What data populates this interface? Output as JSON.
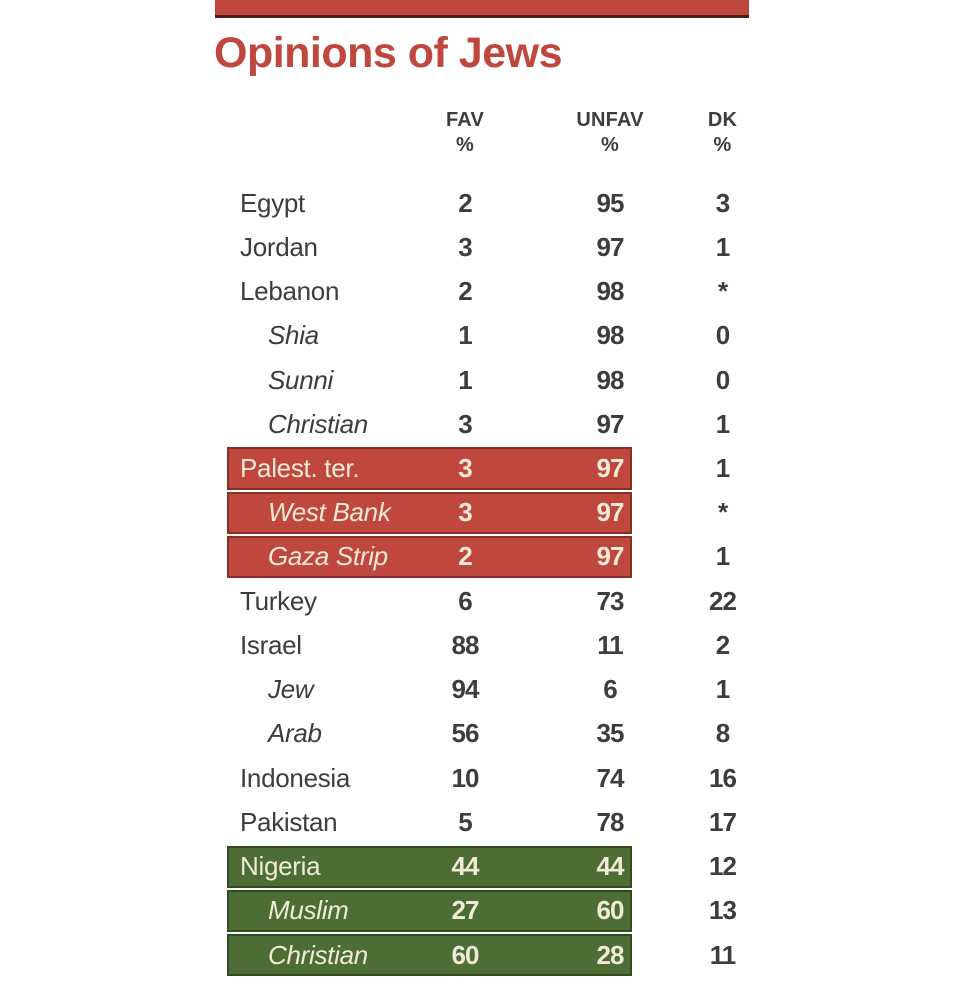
{
  "title": "Opinions of Jews",
  "colors": {
    "red": "#c0473e",
    "red_border": "#8a2f28",
    "green": "#4c6e35",
    "green_border": "#314a20",
    "text": "#3d3d3d",
    "cream": "#f2ead8",
    "background": "#ffffff"
  },
  "chart_data": {
    "type": "table",
    "title": "Opinions of Jews",
    "columns": [
      {
        "label": "FAV",
        "unit": "%"
      },
      {
        "label": "UNFAV",
        "unit": "%"
      },
      {
        "label": "DK",
        "unit": "%"
      }
    ],
    "highlight_legend": {
      "red": "rows highlighted red (Palestinian territories group)",
      "green": "rows highlighted green (Nigeria group)"
    },
    "rows": [
      {
        "label": "Egypt",
        "fav": "2",
        "unfav": "95",
        "dk": "3",
        "indent": false,
        "highlight": "none"
      },
      {
        "label": "Jordan",
        "fav": "3",
        "unfav": "97",
        "dk": "1",
        "indent": false,
        "highlight": "none"
      },
      {
        "label": "Lebanon",
        "fav": "2",
        "unfav": "98",
        "dk": "*",
        "indent": false,
        "highlight": "none"
      },
      {
        "label": "Shia",
        "fav": "1",
        "unfav": "98",
        "dk": "0",
        "indent": true,
        "highlight": "none"
      },
      {
        "label": "Sunni",
        "fav": "1",
        "unfav": "98",
        "dk": "0",
        "indent": true,
        "highlight": "none"
      },
      {
        "label": "Christian",
        "fav": "3",
        "unfav": "97",
        "dk": "1",
        "indent": true,
        "highlight": "none"
      },
      {
        "label": "Palest. ter.",
        "fav": "3",
        "unfav": "97",
        "dk": "1",
        "indent": false,
        "highlight": "red"
      },
      {
        "label": "West Bank",
        "fav": "3",
        "unfav": "97",
        "dk": "*",
        "indent": true,
        "highlight": "red"
      },
      {
        "label": "Gaza Strip",
        "fav": "2",
        "unfav": "97",
        "dk": "1",
        "indent": true,
        "highlight": "red"
      },
      {
        "label": "Turkey",
        "fav": "6",
        "unfav": "73",
        "dk": "22",
        "indent": false,
        "highlight": "none"
      },
      {
        "label": "Israel",
        "fav": "88",
        "unfav": "11",
        "dk": "2",
        "indent": false,
        "highlight": "none"
      },
      {
        "label": "Jew",
        "fav": "94",
        "unfav": "6",
        "dk": "1",
        "indent": true,
        "highlight": "none"
      },
      {
        "label": "Arab",
        "fav": "56",
        "unfav": "35",
        "dk": "8",
        "indent": true,
        "highlight": "none"
      },
      {
        "label": "Indonesia",
        "fav": "10",
        "unfav": "74",
        "dk": "16",
        "indent": false,
        "highlight": "none"
      },
      {
        "label": "Pakistan",
        "fav": "5",
        "unfav": "78",
        "dk": "17",
        "indent": false,
        "highlight": "none"
      },
      {
        "label": "Nigeria",
        "fav": "44",
        "unfav": "44",
        "dk": "12",
        "indent": false,
        "highlight": "green"
      },
      {
        "label": "Muslim",
        "fav": "27",
        "unfav": "60",
        "dk": "13",
        "indent": true,
        "highlight": "green"
      },
      {
        "label": "Christian",
        "fav": "60",
        "unfav": "28",
        "dk": "11",
        "indent": true,
        "highlight": "green"
      }
    ]
  }
}
